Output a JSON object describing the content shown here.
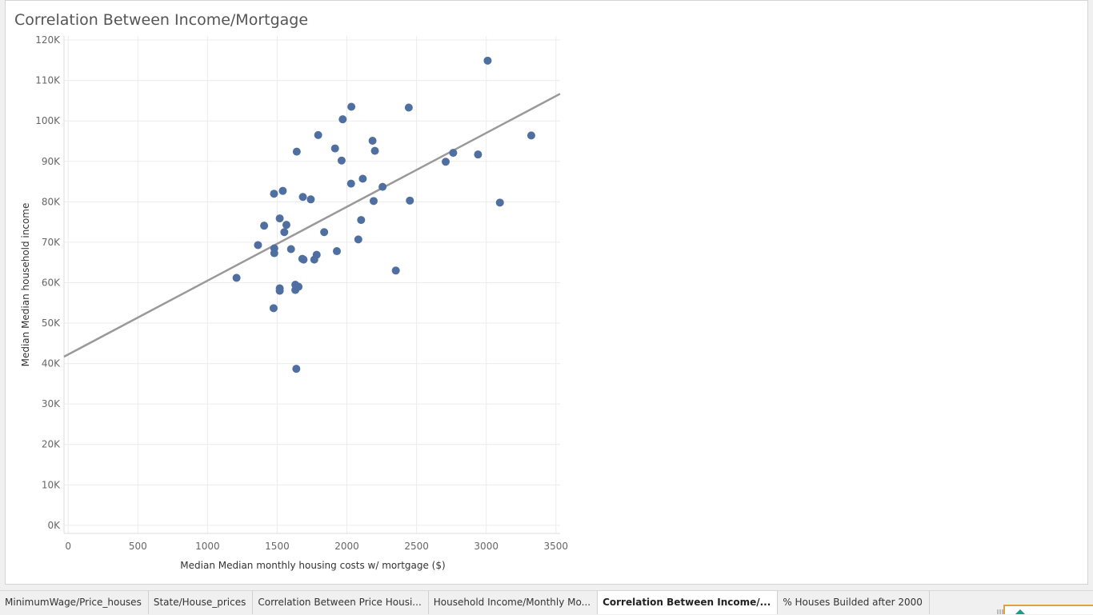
{
  "page_title": "Correlation Between Income/Mortgage",
  "tabs": [
    {
      "label": "MinimumWage/Price_houses",
      "active": false
    },
    {
      "label": "State/House_prices",
      "active": false
    },
    {
      "label": "Correlation Between Price Housi...",
      "active": false
    },
    {
      "label": "Household Income/Monthly Mo...",
      "active": false
    },
    {
      "label": "Correlation Between Income/...",
      "active": true
    },
    {
      "label": "% Houses Builded after 2000",
      "active": false
    }
  ],
  "chart_data": {
    "type": "scatter",
    "title": "Correlation Between Income/Mortgage",
    "xlabel": "Median Median monthly housing costs w/ mortgage ($)",
    "ylabel": "Median Median household income",
    "xlim": [
      -30,
      3530
    ],
    "ylim": [
      -2000,
      121000
    ],
    "x_ticks": [
      0,
      500,
      1000,
      1500,
      2000,
      2500,
      3000,
      3500
    ],
    "x_tick_labels": [
      "0",
      "500",
      "1000",
      "1500",
      "2000",
      "2500",
      "3000",
      "3500"
    ],
    "y_ticks": [
      0,
      10000,
      20000,
      30000,
      40000,
      50000,
      60000,
      70000,
      80000,
      90000,
      100000,
      110000,
      120000
    ],
    "y_tick_labels": [
      "0K",
      "10K",
      "20K",
      "30K",
      "40K",
      "50K",
      "60K",
      "70K",
      "80K",
      "90K",
      "100K",
      "110K",
      "120K"
    ],
    "grid": true,
    "marker_color": "#4e6fa0",
    "trend_color": "#999999",
    "trend_line": {
      "x": [
        -30,
        3530
      ],
      "y": [
        41700,
        106700
      ]
    },
    "points": [
      {
        "x": 1208,
        "y": 61200
      },
      {
        "x": 1362,
        "y": 69300
      },
      {
        "x": 1406,
        "y": 74100
      },
      {
        "x": 1474,
        "y": 53700
      },
      {
        "x": 1477,
        "y": 82000
      },
      {
        "x": 1479,
        "y": 68500
      },
      {
        "x": 1479,
        "y": 67300
      },
      {
        "x": 1518,
        "y": 75900
      },
      {
        "x": 1518,
        "y": 58600
      },
      {
        "x": 1518,
        "y": 58000
      },
      {
        "x": 1540,
        "y": 82700
      },
      {
        "x": 1551,
        "y": 72500
      },
      {
        "x": 1566,
        "y": 74300
      },
      {
        "x": 1599,
        "y": 68300
      },
      {
        "x": 1630,
        "y": 59500
      },
      {
        "x": 1630,
        "y": 58200
      },
      {
        "x": 1637,
        "y": 38700
      },
      {
        "x": 1640,
        "y": 92400
      },
      {
        "x": 1653,
        "y": 59000
      },
      {
        "x": 1680,
        "y": 65900
      },
      {
        "x": 1684,
        "y": 81200
      },
      {
        "x": 1689,
        "y": 65700
      },
      {
        "x": 1741,
        "y": 80600
      },
      {
        "x": 1766,
        "y": 65700
      },
      {
        "x": 1783,
        "y": 66900
      },
      {
        "x": 1794,
        "y": 96500
      },
      {
        "x": 1837,
        "y": 72500
      },
      {
        "x": 1915,
        "y": 93200
      },
      {
        "x": 1928,
        "y": 67800
      },
      {
        "x": 1962,
        "y": 90200
      },
      {
        "x": 1970,
        "y": 100400
      },
      {
        "x": 2030,
        "y": 84500
      },
      {
        "x": 2032,
        "y": 103500
      },
      {
        "x": 2082,
        "y": 70700
      },
      {
        "x": 2102,
        "y": 75500
      },
      {
        "x": 2114,
        "y": 85700
      },
      {
        "x": 2184,
        "y": 95100
      },
      {
        "x": 2192,
        "y": 80200
      },
      {
        "x": 2201,
        "y": 92600
      },
      {
        "x": 2256,
        "y": 83700
      },
      {
        "x": 2351,
        "y": 63000
      },
      {
        "x": 2444,
        "y": 103300
      },
      {
        "x": 2452,
        "y": 80300
      },
      {
        "x": 2709,
        "y": 89900
      },
      {
        "x": 2763,
        "y": 92100
      },
      {
        "x": 2941,
        "y": 91700
      },
      {
        "x": 3010,
        "y": 114900
      },
      {
        "x": 3098,
        "y": 79800
      },
      {
        "x": 3323,
        "y": 96400
      }
    ]
  }
}
